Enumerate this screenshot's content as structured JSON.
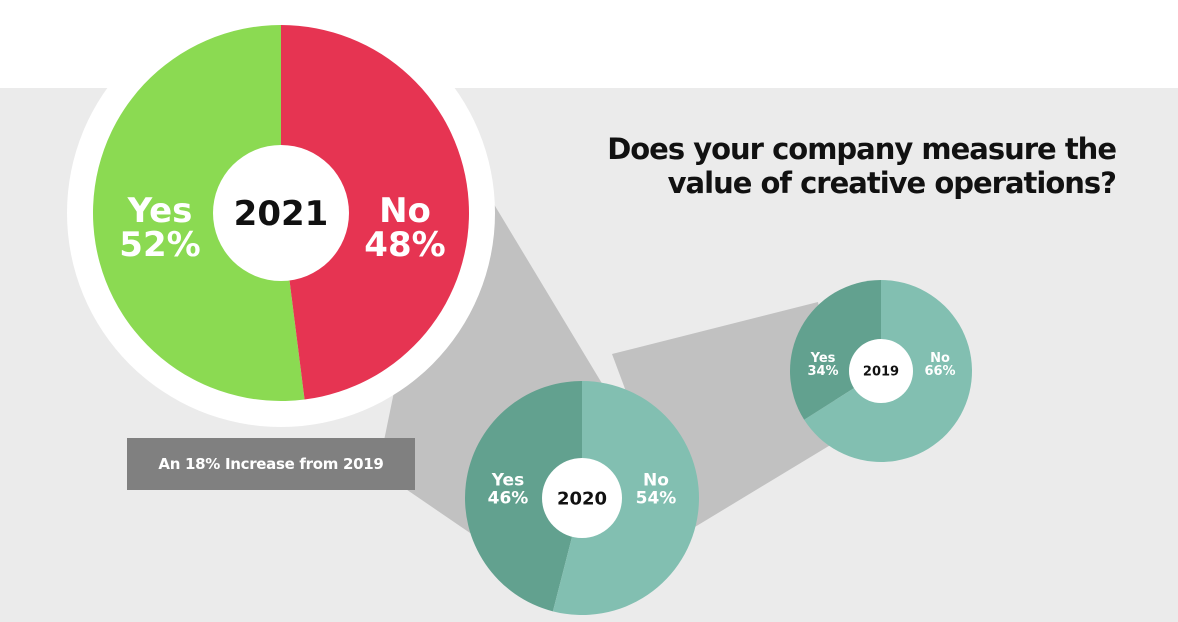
{
  "question_line1": "Does your company measure the",
  "question_line2": "value of creative operations?",
  "note": "An 18% Increase from 2019",
  "colors": {
    "band": "#ebebeb",
    "connector": "#c1c1c1",
    "yes_2021": "#8bda52",
    "no_2021": "#e63452",
    "yes_teal": "#62a18f",
    "no_teal": "#82bfb1",
    "center": "#ffffff"
  },
  "chart_data": [
    {
      "type": "pie",
      "center_label": "2021",
      "categories": [
        "Yes",
        "No"
      ],
      "values": [
        52,
        48
      ],
      "labels": [
        {
          "cat": "Yes",
          "pct": "52%"
        },
        {
          "cat": "No",
          "pct": "48%"
        }
      ]
    },
    {
      "type": "pie",
      "center_label": "2020",
      "categories": [
        "Yes",
        "No"
      ],
      "values": [
        46,
        54
      ],
      "labels": [
        {
          "cat": "Yes",
          "pct": "46%"
        },
        {
          "cat": "No",
          "pct": "54%"
        }
      ]
    },
    {
      "type": "pie",
      "center_label": "2019",
      "categories": [
        "Yes",
        "No"
      ],
      "values": [
        34,
        66
      ],
      "labels": [
        {
          "cat": "Yes",
          "pct": "34%"
        },
        {
          "cat": "No",
          "pct": "66%"
        }
      ]
    }
  ]
}
